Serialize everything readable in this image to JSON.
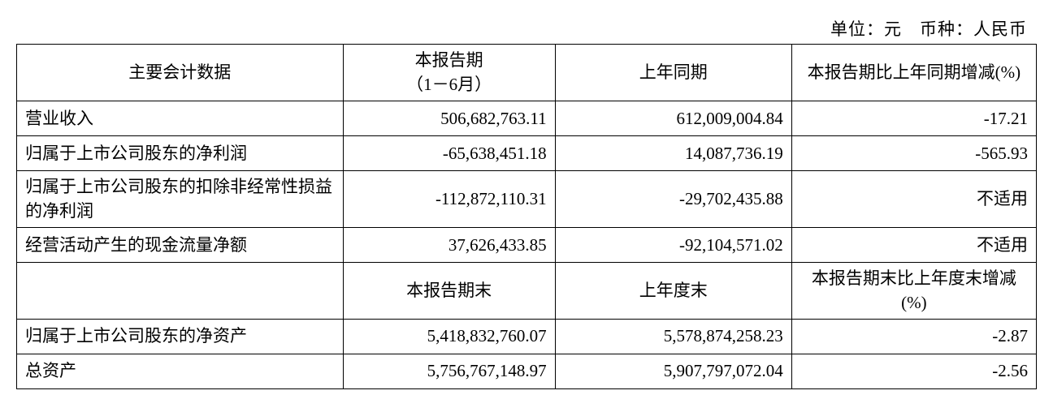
{
  "unit_line": "单位：元　币种：人民币",
  "header1": {
    "name": "主要会计数据",
    "curr": "本报告期\n（1－6月）",
    "prev": "上年同期",
    "chg": "本报告期比上年同期增减(%)"
  },
  "rows1": [
    {
      "name": "营业收入",
      "curr": "506,682,763.11",
      "prev": "612,009,004.84",
      "chg": "-17.21"
    },
    {
      "name": "归属于上市公司股东的净利润",
      "curr": "-65,638,451.18",
      "prev": "14,087,736.19",
      "chg": "-565.93"
    },
    {
      "name": "归属于上市公司股东的扣除非经常性损益的净利润",
      "curr": "-112,872,110.31",
      "prev": "-29,702,435.88",
      "chg": "不适用"
    },
    {
      "name": "经营活动产生的现金流量净额",
      "curr": "37,626,433.85",
      "prev": "-92,104,571.02",
      "chg": "不适用"
    }
  ],
  "header2": {
    "name": "",
    "curr": "本报告期末",
    "prev": "上年度末",
    "chg": "本报告期末比上年度末增减(%)"
  },
  "rows2": [
    {
      "name": "归属于上市公司股东的净资产",
      "curr": "5,418,832,760.07",
      "prev": "5,578,874,258.23",
      "chg": "-2.87"
    },
    {
      "name": "总资产",
      "curr": "5,756,767,148.97",
      "prev": "5,907,797,072.04",
      "chg": "-2.56"
    }
  ]
}
